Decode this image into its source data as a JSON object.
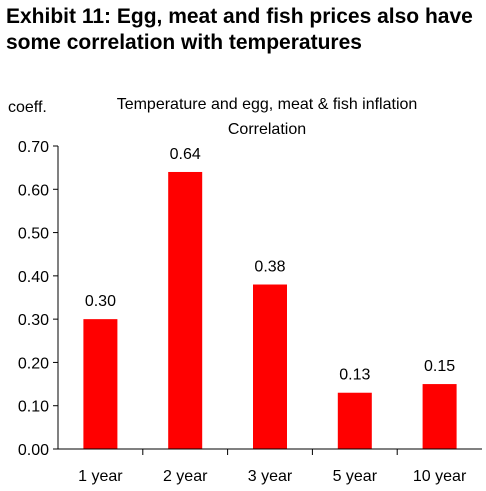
{
  "exhibit_title": "Exhibit 11: Egg, meat and fish prices also have some correlation with temperatures",
  "chart_data": {
    "type": "bar",
    "title": "Temperature and egg, meat & fish inflation",
    "subtitle": "Correlation",
    "ylabel": "coeff.",
    "xlabel": "",
    "categories": [
      "1 year",
      "2 year",
      "3 year",
      "5 year",
      "10 year"
    ],
    "values": [
      0.3,
      0.64,
      0.38,
      0.13,
      0.15
    ],
    "data_labels": [
      "0.30",
      "0.64",
      "0.38",
      "0.13",
      "0.15"
    ],
    "ylim": [
      0,
      0.7
    ],
    "yticks": [
      "0.00",
      "0.10",
      "0.20",
      "0.30",
      "0.40",
      "0.50",
      "0.60",
      "0.70"
    ],
    "bar_color": "#ff0000",
    "grid": false,
    "legend": "none"
  }
}
